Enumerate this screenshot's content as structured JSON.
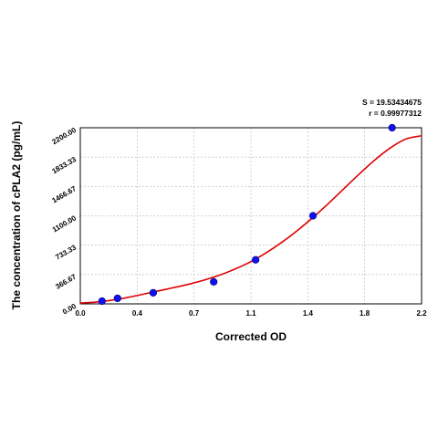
{
  "chart_data": {
    "type": "scatter",
    "xlabel": "Corrected OD",
    "ylabel": "The concentration of cPLA2 (pg/mL)",
    "xlim": [
      0,
      2.2
    ],
    "ylim": [
      0,
      2200
    ],
    "x_ticks": [
      "0.0",
      "0.4",
      "0.7",
      "1.1",
      "1.4",
      "1.8",
      "2.2"
    ],
    "x_tick_values": [
      0,
      0.367,
      0.733,
      1.1,
      1.467,
      1.833,
      2.2
    ],
    "y_ticks": [
      "0.00",
      "366.67",
      "733.33",
      "1100.00",
      "1466.67",
      "1833.33",
      "2200.00"
    ],
    "y_tick_values": [
      0,
      366.67,
      733.33,
      1100,
      1466.67,
      1833.33,
      2200
    ],
    "grid": true,
    "points": {
      "x": [
        0.14,
        0.24,
        0.47,
        0.86,
        1.13,
        1.5,
        2.01
      ],
      "y": [
        34,
        69,
        138,
        275,
        550,
        1100,
        2200
      ]
    },
    "fit_curve": {
      "x": [
        0.0,
        0.1,
        0.2,
        0.3,
        0.4,
        0.5,
        0.6,
        0.7,
        0.8,
        0.9,
        1.0,
        1.1,
        1.2,
        1.3,
        1.4,
        1.5,
        1.6,
        1.7,
        1.8,
        1.9,
        2.0,
        2.1,
        2.2
      ],
      "y": [
        10,
        22,
        45,
        78,
        118,
        160,
        202,
        246,
        298,
        360,
        437,
        528,
        640,
        770,
        917,
        1080,
        1255,
        1440,
        1625,
        1800,
        1950,
        2060,
        2100
      ]
    },
    "point_color": "#1010ee",
    "curve_color": "#e00000",
    "stats": {
      "s": "S = 19.53434675",
      "r": "r = 0.99977312"
    }
  }
}
